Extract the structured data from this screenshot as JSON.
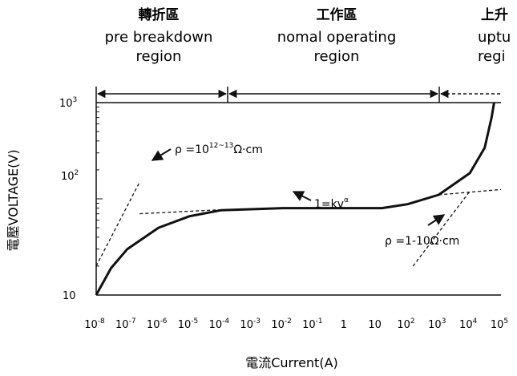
{
  "chart_data": {
    "type": "line",
    "xlabel": "電流Current(A)",
    "ylabel": "電壓VOLTAGE(V)",
    "x_scale": "log",
    "y_scale": "log",
    "xlim": [
      1e-08,
      100000
    ],
    "ylim": [
      10,
      1000
    ],
    "x_ticks": [
      {
        "base": "10",
        "exp": "-8"
      },
      {
        "base": "10",
        "exp": "-7"
      },
      {
        "base": "10",
        "exp": "-6"
      },
      {
        "base": "10",
        "exp": "-5"
      },
      {
        "base": "10",
        "exp": "-4"
      },
      {
        "base": "10",
        "exp": "-3"
      },
      {
        "base": "10",
        "exp": "-2"
      },
      {
        "base": "10",
        "exp": "-1"
      },
      {
        "base": "1",
        "exp": ""
      },
      {
        "base": "10",
        "exp": ""
      },
      {
        "base": "10",
        "exp": "2"
      },
      {
        "base": "10",
        "exp": "3"
      },
      {
        "base": "10",
        "exp": "4"
      },
      {
        "base": "10",
        "exp": "5"
      }
    ],
    "y_ticks": [
      {
        "base": "10",
        "exp": "3"
      },
      {
        "base": "10",
        "exp": "2"
      },
      {
        "base": "10",
        "exp": ""
      }
    ],
    "regions": [
      {
        "zh": "轉折區",
        "en1": "pre  breakdown",
        "en2": "region",
        "range": [
          1e-08,
          0.0001
        ]
      },
      {
        "zh": "工作區",
        "en1": "nomal operating",
        "en2": "region",
        "range": [
          0.0001,
          1000
        ]
      },
      {
        "zh": "上升",
        "en1": "uptu",
        "en2": "regi",
        "range": [
          1000,
          100000
        ]
      }
    ],
    "series": [
      {
        "style": "solid",
        "x": [
          1e-08,
          3e-08,
          1e-07,
          1e-06,
          1e-05,
          0.0001,
          0.01,
          15,
          100,
          1000,
          10000,
          30000,
          50000,
          60000
        ],
        "y": [
          10,
          19,
          30,
          50,
          66,
          76,
          80,
          80,
          88,
          110,
          185,
          340,
          700,
          1000
        ]
      },
      {
        "style": "dashed",
        "x": [
          1e-08,
          2.5e-07
        ],
        "y": [
          20,
          150
        ]
      },
      {
        "style": "dashed",
        "x": [
          2.5e-07,
          0.0001
        ],
        "y": [
          70,
          77
        ]
      },
      {
        "style": "dashed",
        "x": [
          1000,
          100000
        ],
        "y": [
          110,
          125
        ]
      },
      {
        "style": "dashed",
        "x": [
          150,
          10000
        ],
        "y": [
          20,
          120
        ]
      }
    ],
    "annotations": [
      {
        "text": "ρ =10",
        "sup": "12~13",
        "tail": "Ω·cm"
      },
      {
        "text": "1=kv",
        "sup": "α",
        "tail": ""
      },
      {
        "text": "ρ =1-10Ω·cm",
        "sup": "",
        "tail": ""
      }
    ]
  }
}
